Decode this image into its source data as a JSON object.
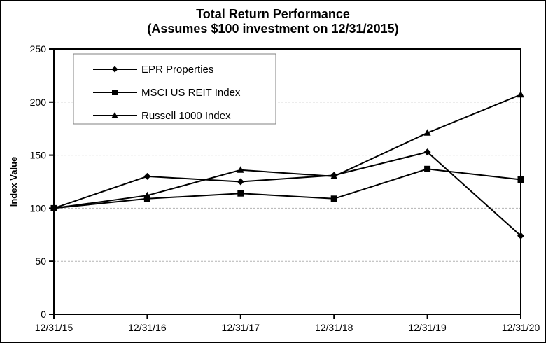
{
  "title": {
    "line1": "Total Return Performance",
    "line2": "(Assumes $100 investment on 12/31/2015)"
  },
  "chart_data": {
    "type": "line",
    "categories": [
      "12/31/15",
      "12/31/16",
      "12/31/17",
      "12/31/18",
      "12/31/19",
      "12/31/20"
    ],
    "series": [
      {
        "name": "EPR Properties",
        "marker": "diamond",
        "values": [
          100,
          130,
          125,
          131,
          153,
          74
        ]
      },
      {
        "name": "MSCI US REIT Index",
        "marker": "square",
        "values": [
          100,
          109,
          114,
          109,
          137,
          127
        ]
      },
      {
        "name": "Russell 1000 Index",
        "marker": "triangle",
        "values": [
          100,
          112,
          136,
          130,
          171,
          207
        ]
      }
    ],
    "title": "Total Return Performance (Assumes $100 investment on 12/31/2015)",
    "xlabel": "",
    "ylabel": "Index Value",
    "ylim": [
      0,
      250
    ],
    "ytick_step": 50,
    "yticks": [
      0,
      50,
      100,
      150,
      200,
      250
    ],
    "grid": "horizontal-dashed",
    "legend_position": "top-left",
    "colors": {
      "line": "#000000",
      "grid": "#b3b3b3",
      "frame": "#000000",
      "legend_border": "#808080",
      "background": "#ffffff"
    }
  }
}
